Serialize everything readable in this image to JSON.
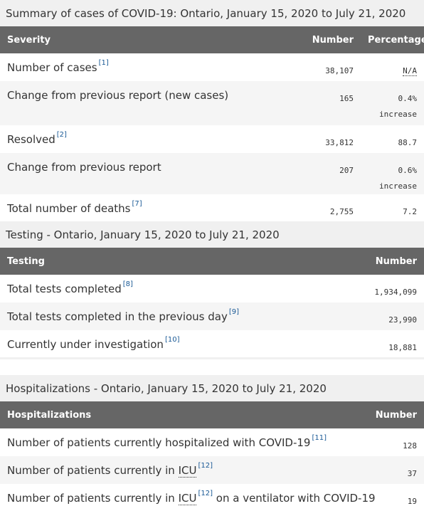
{
  "cases": {
    "caption": "Summary of cases of COVID-19: Ontario, January 15, 2020 to July 21, 2020",
    "headers": {
      "severity": "Severity",
      "number": "Number",
      "percentage": "Percentage"
    },
    "rows": [
      {
        "label": "Number of cases",
        "ref": "[1]",
        "number": "38,107",
        "pct": "N/A",
        "pct_sub": ""
      },
      {
        "label": "Change from previous report (new cases)",
        "ref": "",
        "number": "165",
        "pct": "0.4%",
        "pct_sub": "increase"
      },
      {
        "label": "Resolved",
        "ref": "[2]",
        "number": "33,812",
        "pct": "88.7",
        "pct_sub": ""
      },
      {
        "label": "Change from previous report",
        "ref": "",
        "number": "207",
        "pct": "0.6%",
        "pct_sub": "increase"
      },
      {
        "label": "Total number of deaths",
        "ref": "[7]",
        "number": "2,755",
        "pct": "7.2",
        "pct_sub": ""
      }
    ]
  },
  "testing": {
    "caption_bold": "Testing",
    "caption_rest": " - Ontario, January 15, 2020 to July 21, 2020",
    "headers": {
      "testing": "Testing",
      "number": "Number"
    },
    "rows": [
      {
        "label": "Total tests completed",
        "ref": "[8]",
        "number": "1,934,099"
      },
      {
        "label": "Total tests completed in the previous day",
        "ref": "[9]",
        "number": "23,990"
      },
      {
        "label": "Currently under investigation",
        "ref": "[10]",
        "number": "18,881"
      }
    ]
  },
  "hospital": {
    "caption_bold": "Hospitalizations",
    "caption_rest": " - Ontario, January 15, 2020 to July 21, 2020",
    "headers": {
      "hospitalizations": "Hospitalizations",
      "number": "Number"
    },
    "rows": [
      {
        "label": "Number of patients currently hospitalized with COVID-19",
        "ref": "[11]",
        "number": "128"
      },
      {
        "label_pre": "Number of patients currently in ",
        "abbr": "ICU",
        "ref": "[12]",
        "label_post": "",
        "number": "37"
      },
      {
        "label_pre": "Number of patients currently in ",
        "abbr": "ICU",
        "ref": "[12]",
        "label_post": " on a ventilator with COVID-19",
        "number": "19"
      }
    ]
  }
}
